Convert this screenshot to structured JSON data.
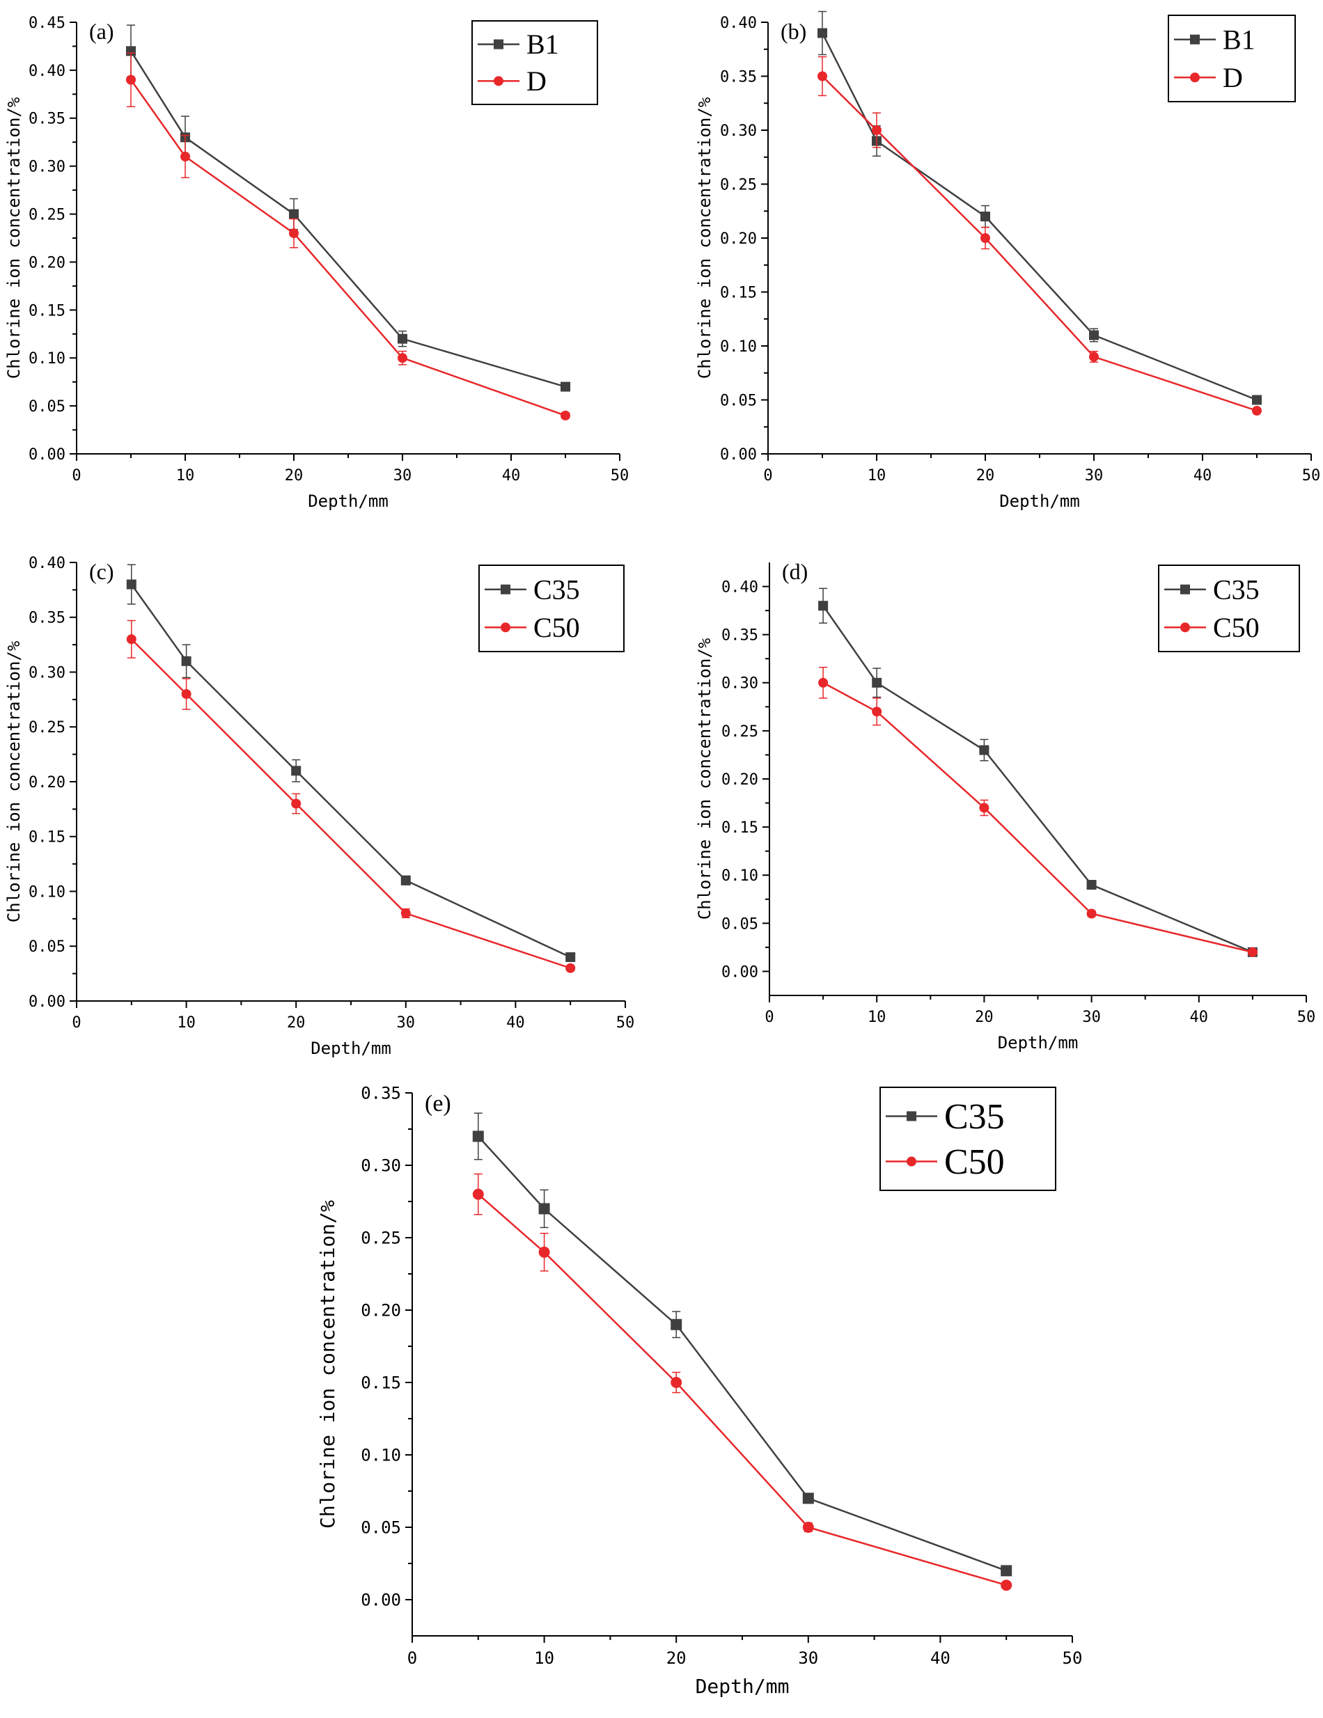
{
  "chart_data": [
    {
      "type": "line",
      "panel_label": "(a)",
      "xlabel": "Depth/mm",
      "ylabel": "Chlorine ion concentration/%",
      "xlim": [
        0,
        50
      ],
      "ylim": [
        0,
        0.45
      ],
      "xticks": [
        0,
        10,
        20,
        30,
        40,
        50
      ],
      "xtick_labels": [
        "0",
        "10",
        "20",
        "30",
        "40",
        "50"
      ],
      "yticks": [
        0,
        0.05,
        0.1,
        0.15,
        0.2,
        0.25,
        0.3,
        0.35,
        0.4,
        0.45
      ],
      "ytick_labels": [
        "0.00",
        "0.05",
        "0.10",
        "0.15",
        "0.20",
        "0.25",
        "0.30",
        "0.35",
        "0.40",
        "0.45"
      ],
      "legend_position": "top-right",
      "x": [
        5,
        10,
        20,
        30,
        45
      ],
      "series": [
        {
          "name": "B1",
          "color": "#404040",
          "marker": "square",
          "values": [
            0.42,
            0.33,
            0.25,
            0.12,
            0.07
          ],
          "errors": [
            0.027,
            0.022,
            0.016,
            0.008,
            0.004
          ]
        },
        {
          "name": "D",
          "color": "#e8272a",
          "marker": "circle",
          "values": [
            0.39,
            0.31,
            0.23,
            0.1,
            0.04
          ],
          "errors": [
            0.028,
            0.022,
            0.015,
            0.007,
            0.003
          ]
        }
      ]
    },
    {
      "type": "line",
      "panel_label": "(b)",
      "xlabel": "Depth/mm",
      "ylabel": "Chlorine ion concentration/%",
      "xlim": [
        0,
        50
      ],
      "ylim": [
        0,
        0.4
      ],
      "xticks": [
        0,
        10,
        20,
        30,
        40,
        50
      ],
      "xtick_labels": [
        "0",
        "10",
        "20",
        "30",
        "40",
        "50"
      ],
      "yticks": [
        0,
        0.05,
        0.1,
        0.15,
        0.2,
        0.25,
        0.3,
        0.35,
        0.4
      ],
      "ytick_labels": [
        "0.00",
        "0.05",
        "0.10",
        "0.15",
        "0.20",
        "0.25",
        "0.30",
        "0.35",
        "0.40"
      ],
      "legend_position": "top-right",
      "x": [
        5,
        10,
        20,
        30,
        45
      ],
      "series": [
        {
          "name": "B1",
          "color": "#404040",
          "marker": "square",
          "values": [
            0.39,
            0.29,
            0.22,
            0.11,
            0.05
          ],
          "errors": [
            0.02,
            0.014,
            0.01,
            0.006,
            0.003
          ]
        },
        {
          "name": "D",
          "color": "#e8272a",
          "marker": "circle",
          "values": [
            0.35,
            0.3,
            0.2,
            0.09,
            0.04
          ],
          "errors": [
            0.018,
            0.016,
            0.01,
            0.005,
            0.002
          ]
        }
      ]
    },
    {
      "type": "line",
      "panel_label": "(c)",
      "xlabel": "Depth/mm",
      "ylabel": "Chlorine ion concentration/%",
      "xlim": [
        0,
        50
      ],
      "ylim": [
        0,
        0.4
      ],
      "xticks": [
        0,
        10,
        20,
        30,
        40,
        50
      ],
      "xtick_labels": [
        "0",
        "10",
        "20",
        "30",
        "40",
        "50"
      ],
      "yticks": [
        0,
        0.05,
        0.1,
        0.15,
        0.2,
        0.25,
        0.3,
        0.35,
        0.4
      ],
      "ytick_labels": [
        "0.00",
        "0.05",
        "0.10",
        "0.15",
        "0.20",
        "0.25",
        "0.30",
        "0.35",
        "0.40"
      ],
      "legend_position": "top-right",
      "x": [
        5,
        10,
        20,
        30,
        45
      ],
      "series": [
        {
          "name": "C35",
          "color": "#404040",
          "marker": "square",
          "values": [
            0.38,
            0.31,
            0.21,
            0.11,
            0.04
          ],
          "errors": [
            0.018,
            0.015,
            0.01,
            0.004,
            0.002
          ]
        },
        {
          "name": "C50",
          "color": "#e8272a",
          "marker": "circle",
          "values": [
            0.33,
            0.28,
            0.18,
            0.08,
            0.03
          ],
          "errors": [
            0.017,
            0.014,
            0.009,
            0.004,
            0.002
          ]
        }
      ]
    },
    {
      "type": "line",
      "panel_label": "(d)",
      "xlabel": "Depth/mm",
      "ylabel": "Chlorine ion concentration/%",
      "xlim": [
        0,
        50
      ],
      "ylim": [
        -0.025,
        0.425
      ],
      "xticks": [
        0,
        10,
        20,
        30,
        40,
        50
      ],
      "xtick_labels": [
        "0",
        "10",
        "20",
        "30",
        "40",
        "50"
      ],
      "yticks": [
        0,
        0.05,
        0.1,
        0.15,
        0.2,
        0.25,
        0.3,
        0.35,
        0.4
      ],
      "ytick_labels": [
        "0.00",
        "0.05",
        "0.10",
        "0.15",
        "0.20",
        "0.25",
        "0.30",
        "0.35",
        "0.40"
      ],
      "legend_position": "top-right",
      "x": [
        5,
        10,
        20,
        30,
        45
      ],
      "series": [
        {
          "name": "C35",
          "color": "#404040",
          "marker": "square",
          "values": [
            0.38,
            0.3,
            0.23,
            0.09,
            0.02
          ],
          "errors": [
            0.018,
            0.015,
            0.011,
            0.004,
            0.002
          ]
        },
        {
          "name": "C50",
          "color": "#e8272a",
          "marker": "circle",
          "values": [
            0.3,
            0.27,
            0.17,
            0.06,
            0.02
          ],
          "errors": [
            0.016,
            0.014,
            0.008,
            0.003,
            0.002
          ]
        }
      ]
    },
    {
      "type": "line",
      "panel_label": "(e)",
      "xlabel": "Depth/mm",
      "ylabel": "Chlorine ion concentration/%",
      "xlim": [
        0,
        50
      ],
      "ylim": [
        -0.025,
        0.35
      ],
      "xticks": [
        0,
        10,
        20,
        30,
        40,
        50
      ],
      "xtick_labels": [
        "0",
        "10",
        "20",
        "30",
        "40",
        "50"
      ],
      "yticks": [
        0,
        0.05,
        0.1,
        0.15,
        0.2,
        0.25,
        0.3,
        0.35
      ],
      "ytick_labels": [
        "0.00",
        "0.05",
        "0.10",
        "0.15",
        "0.20",
        "0.25",
        "0.30",
        "0.35"
      ],
      "legend_position": "top-right",
      "x": [
        5,
        10,
        20,
        30,
        45
      ],
      "series": [
        {
          "name": "C35",
          "color": "#404040",
          "marker": "square",
          "values": [
            0.32,
            0.27,
            0.19,
            0.07,
            0.02
          ],
          "errors": [
            0.016,
            0.013,
            0.009,
            0.003,
            0.002
          ]
        },
        {
          "name": "C50",
          "color": "#e8272a",
          "marker": "circle",
          "values": [
            0.28,
            0.24,
            0.15,
            0.05,
            0.01
          ],
          "errors": [
            0.014,
            0.013,
            0.007,
            0.003,
            0.002
          ]
        }
      ]
    }
  ]
}
